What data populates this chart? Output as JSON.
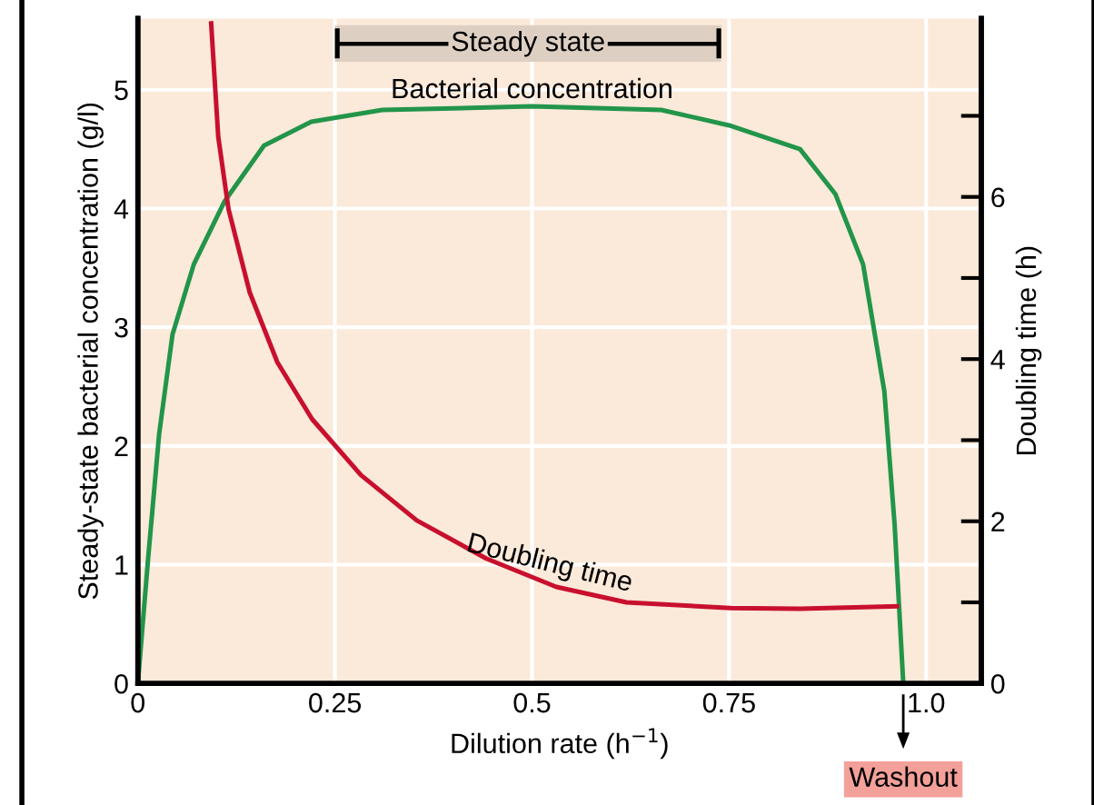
{
  "chart_data": {
    "type": "line",
    "xlabel": "Dilution rate (h$^{−1}$)",
    "ylabel": "Steady-state bacterial concentration (g/l)",
    "y2label": "Doubling time (h)",
    "xlim": [
      0,
      1.07
    ],
    "xticks": [
      0,
      0.25,
      0.5,
      0.75,
      {
        "value": 1,
        "label": "1.0"
      }
    ],
    "ylim": [
      0,
      5.6
    ],
    "yticks": [
      0,
      1,
      2,
      3,
      4,
      5
    ],
    "y2lim": [
      0,
      8.2
    ],
    "y2ticks": [
      0,
      {
        "value": 1,
        "label": null
      },
      2,
      {
        "value": 3,
        "label": null
      },
      4,
      {
        "value": 5,
        "label": null
      },
      6,
      {
        "value": 7,
        "label": null
      }
    ],
    "grid": true,
    "legend": false,
    "marker": "none",
    "line_style": "solid",
    "series": [
      {
        "name": "Bacterial concentration",
        "color": "#22954a",
        "x": [
          0,
          0.013,
          0.027,
          0.044,
          0.071,
          0.11,
          0.16,
          0.22,
          0.31,
          0.5,
          0.664,
          0.75,
          0.84,
          0.885,
          0.92,
          0.947,
          0.96,
          0.971
        ],
        "values": [
          0,
          1.05,
          2.1,
          2.94,
          3.53,
          4.06,
          4.53,
          4.73,
          4.83,
          4.86,
          4.83,
          4.7,
          4.5,
          4.12,
          3.53,
          2.46,
          1.34,
          0
        ]
      },
      {
        "name": "Doubling time",
        "color": "#c8102e",
        "axis": "y2",
        "x": [
          0.093,
          0.102,
          0.115,
          0.142,
          0.177,
          0.221,
          0.283,
          0.354,
          0.442,
          0.531,
          0.62,
          0.752,
          0.84,
          0.963
        ],
        "values": [
          8.14,
          6.74,
          5.85,
          4.82,
          3.96,
          3.26,
          2.57,
          2.01,
          1.54,
          1.19,
          1.0,
          0.93,
          0.92,
          0.95
        ]
      }
    ],
    "bands": [
      {
        "axis": "x",
        "from": 0.25,
        "to": 0.74,
        "label": "Steady state",
        "color": "#ddd0c3"
      }
    ],
    "annotations": [
      {
        "text": "Washout",
        "x": 0.971,
        "y": 0
      }
    ]
  }
}
